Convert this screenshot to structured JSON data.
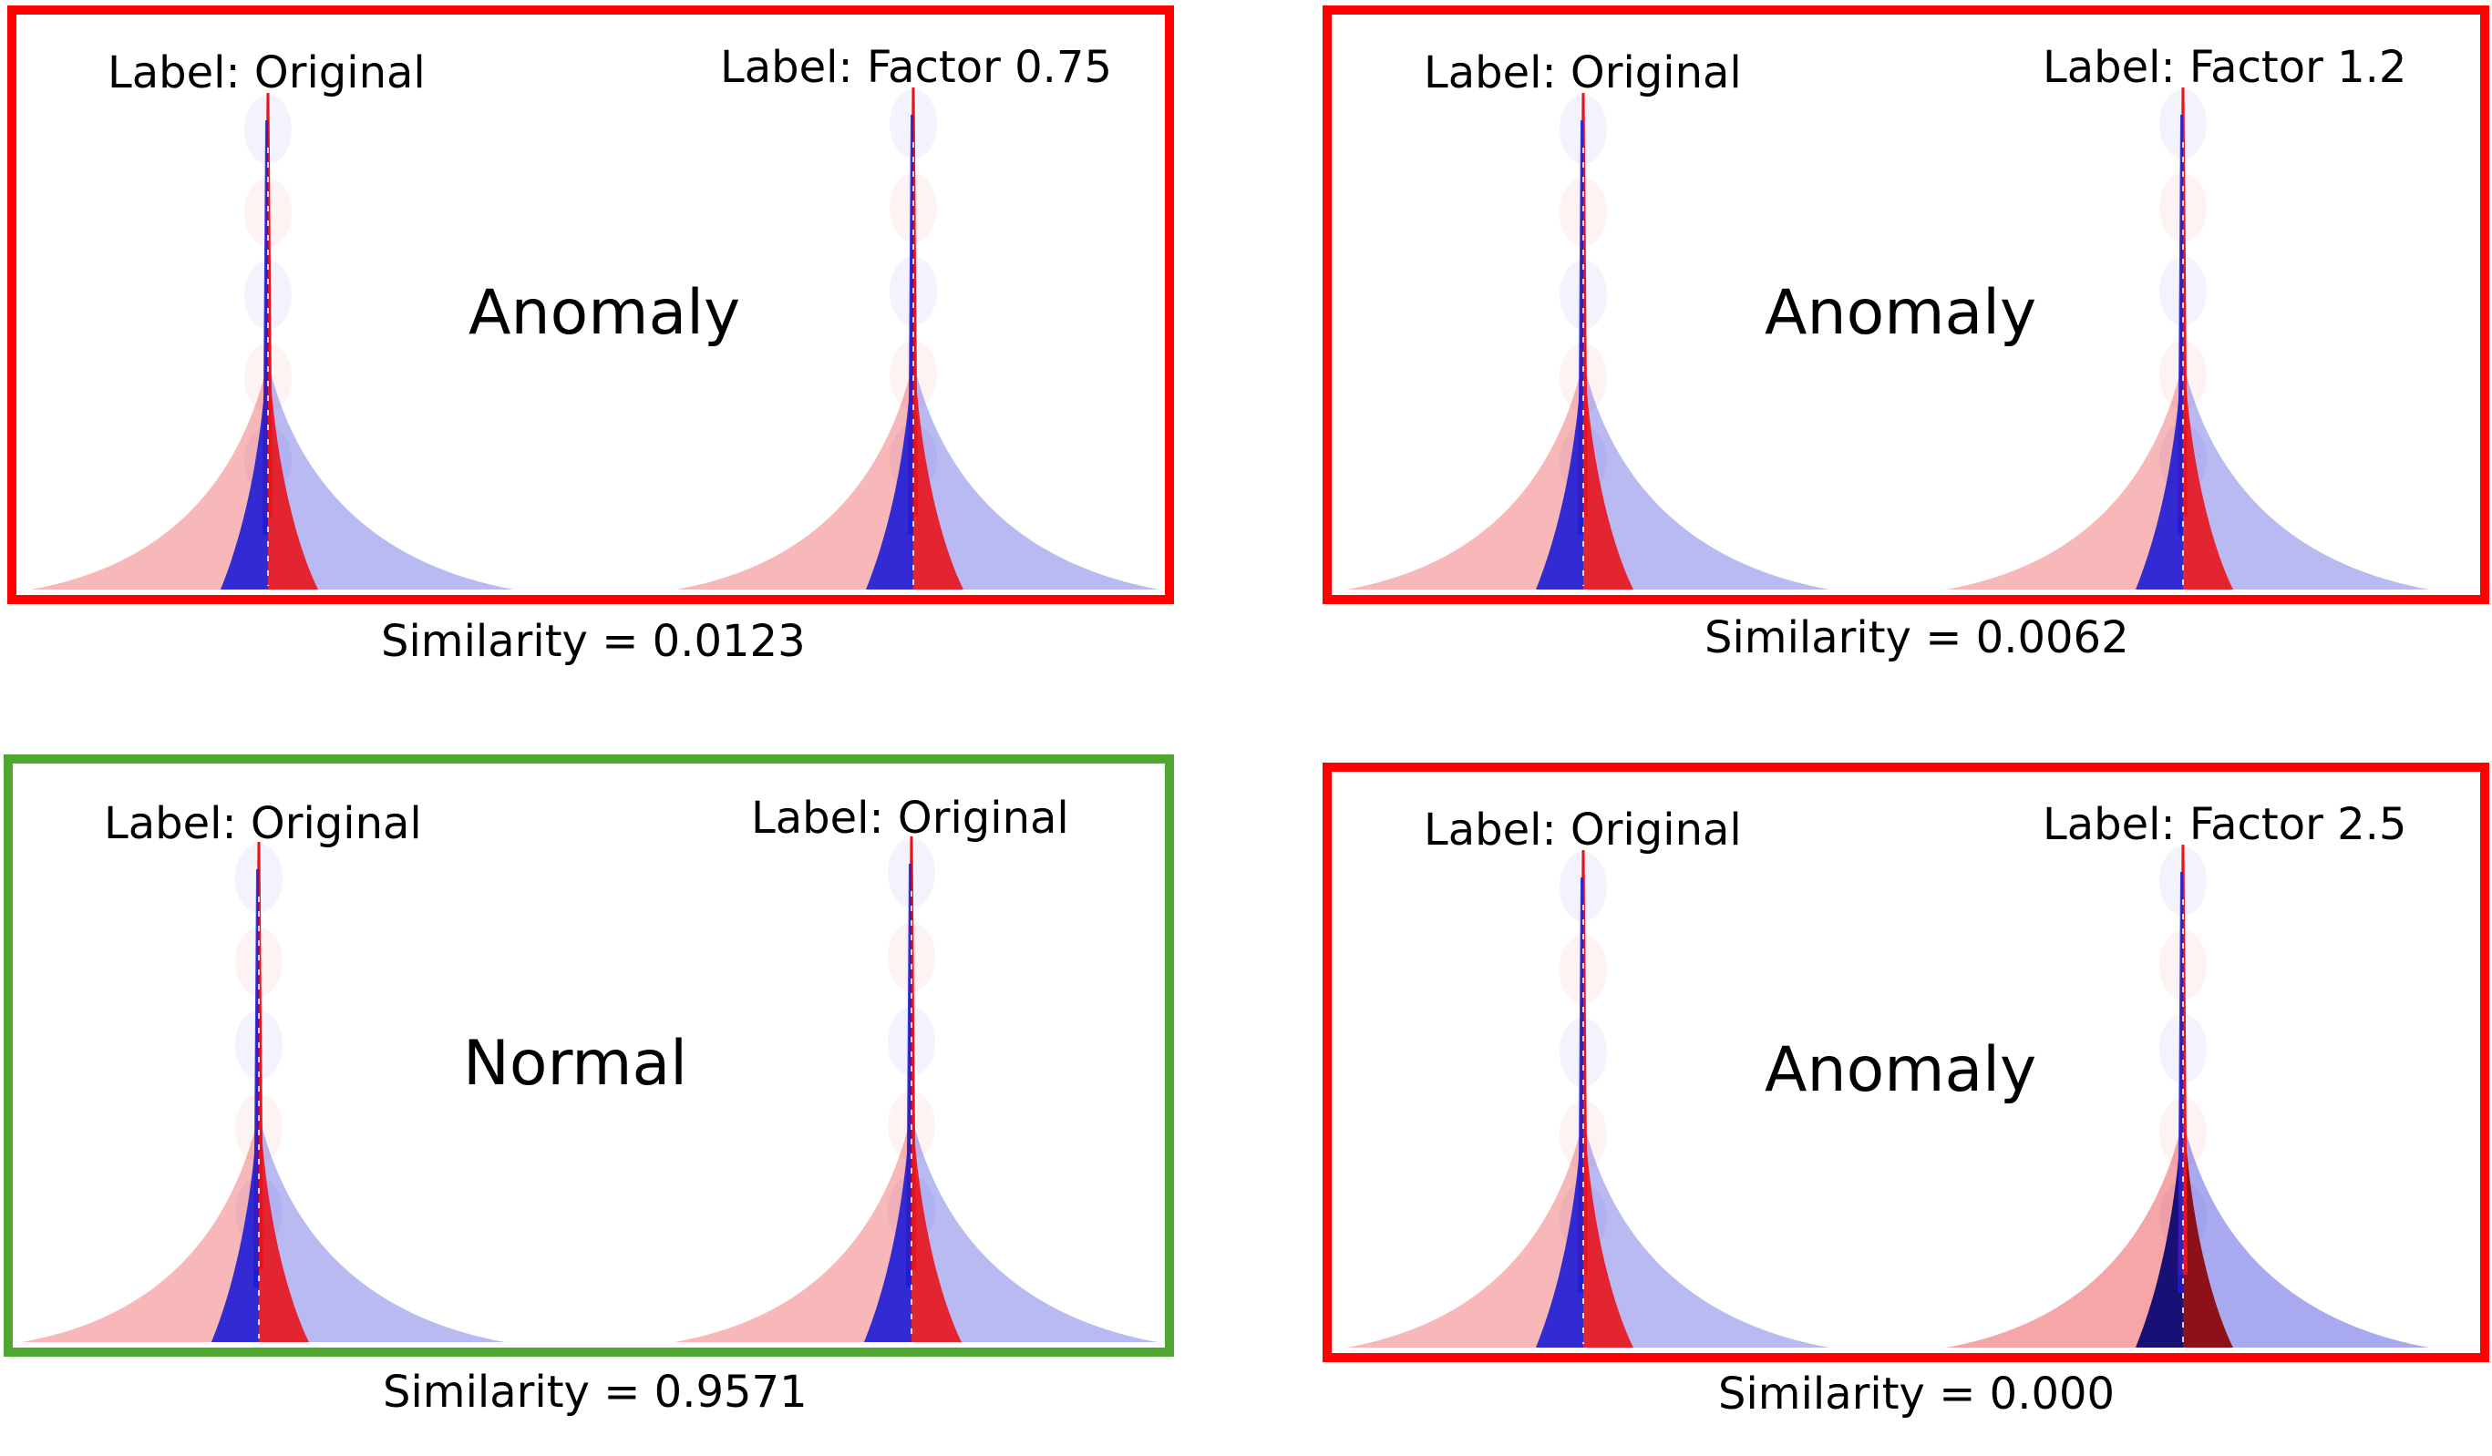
{
  "panels": [
    {
      "left_label": "Label: Original",
      "right_label": "Label: Factor 0.75",
      "status": "Anomaly",
      "similarity": "Similarity = 0.0123",
      "border_color": "#ff0000"
    },
    {
      "left_label": "Label: Original",
      "right_label": "Label: Factor 1.2",
      "status": "Anomaly",
      "similarity": "Similarity = 0.0062",
      "border_color": "#ff0000"
    },
    {
      "left_label": "Label: Original",
      "right_label": "Label: Original",
      "status": "Normal",
      "similarity": "Similarity = 0.9571",
      "border_color": "#4ea72e"
    },
    {
      "left_label": "Label: Original",
      "right_label": "Label: Factor 2.5",
      "status": "Anomaly",
      "similarity": "Similarity = 0.000",
      "border_color": "#ff0000"
    }
  ],
  "colors": {
    "positive": "#e8141c",
    "negative": "#1c1cd6",
    "dark_positive": "#8a0000",
    "dark_negative": "#00006e"
  }
}
